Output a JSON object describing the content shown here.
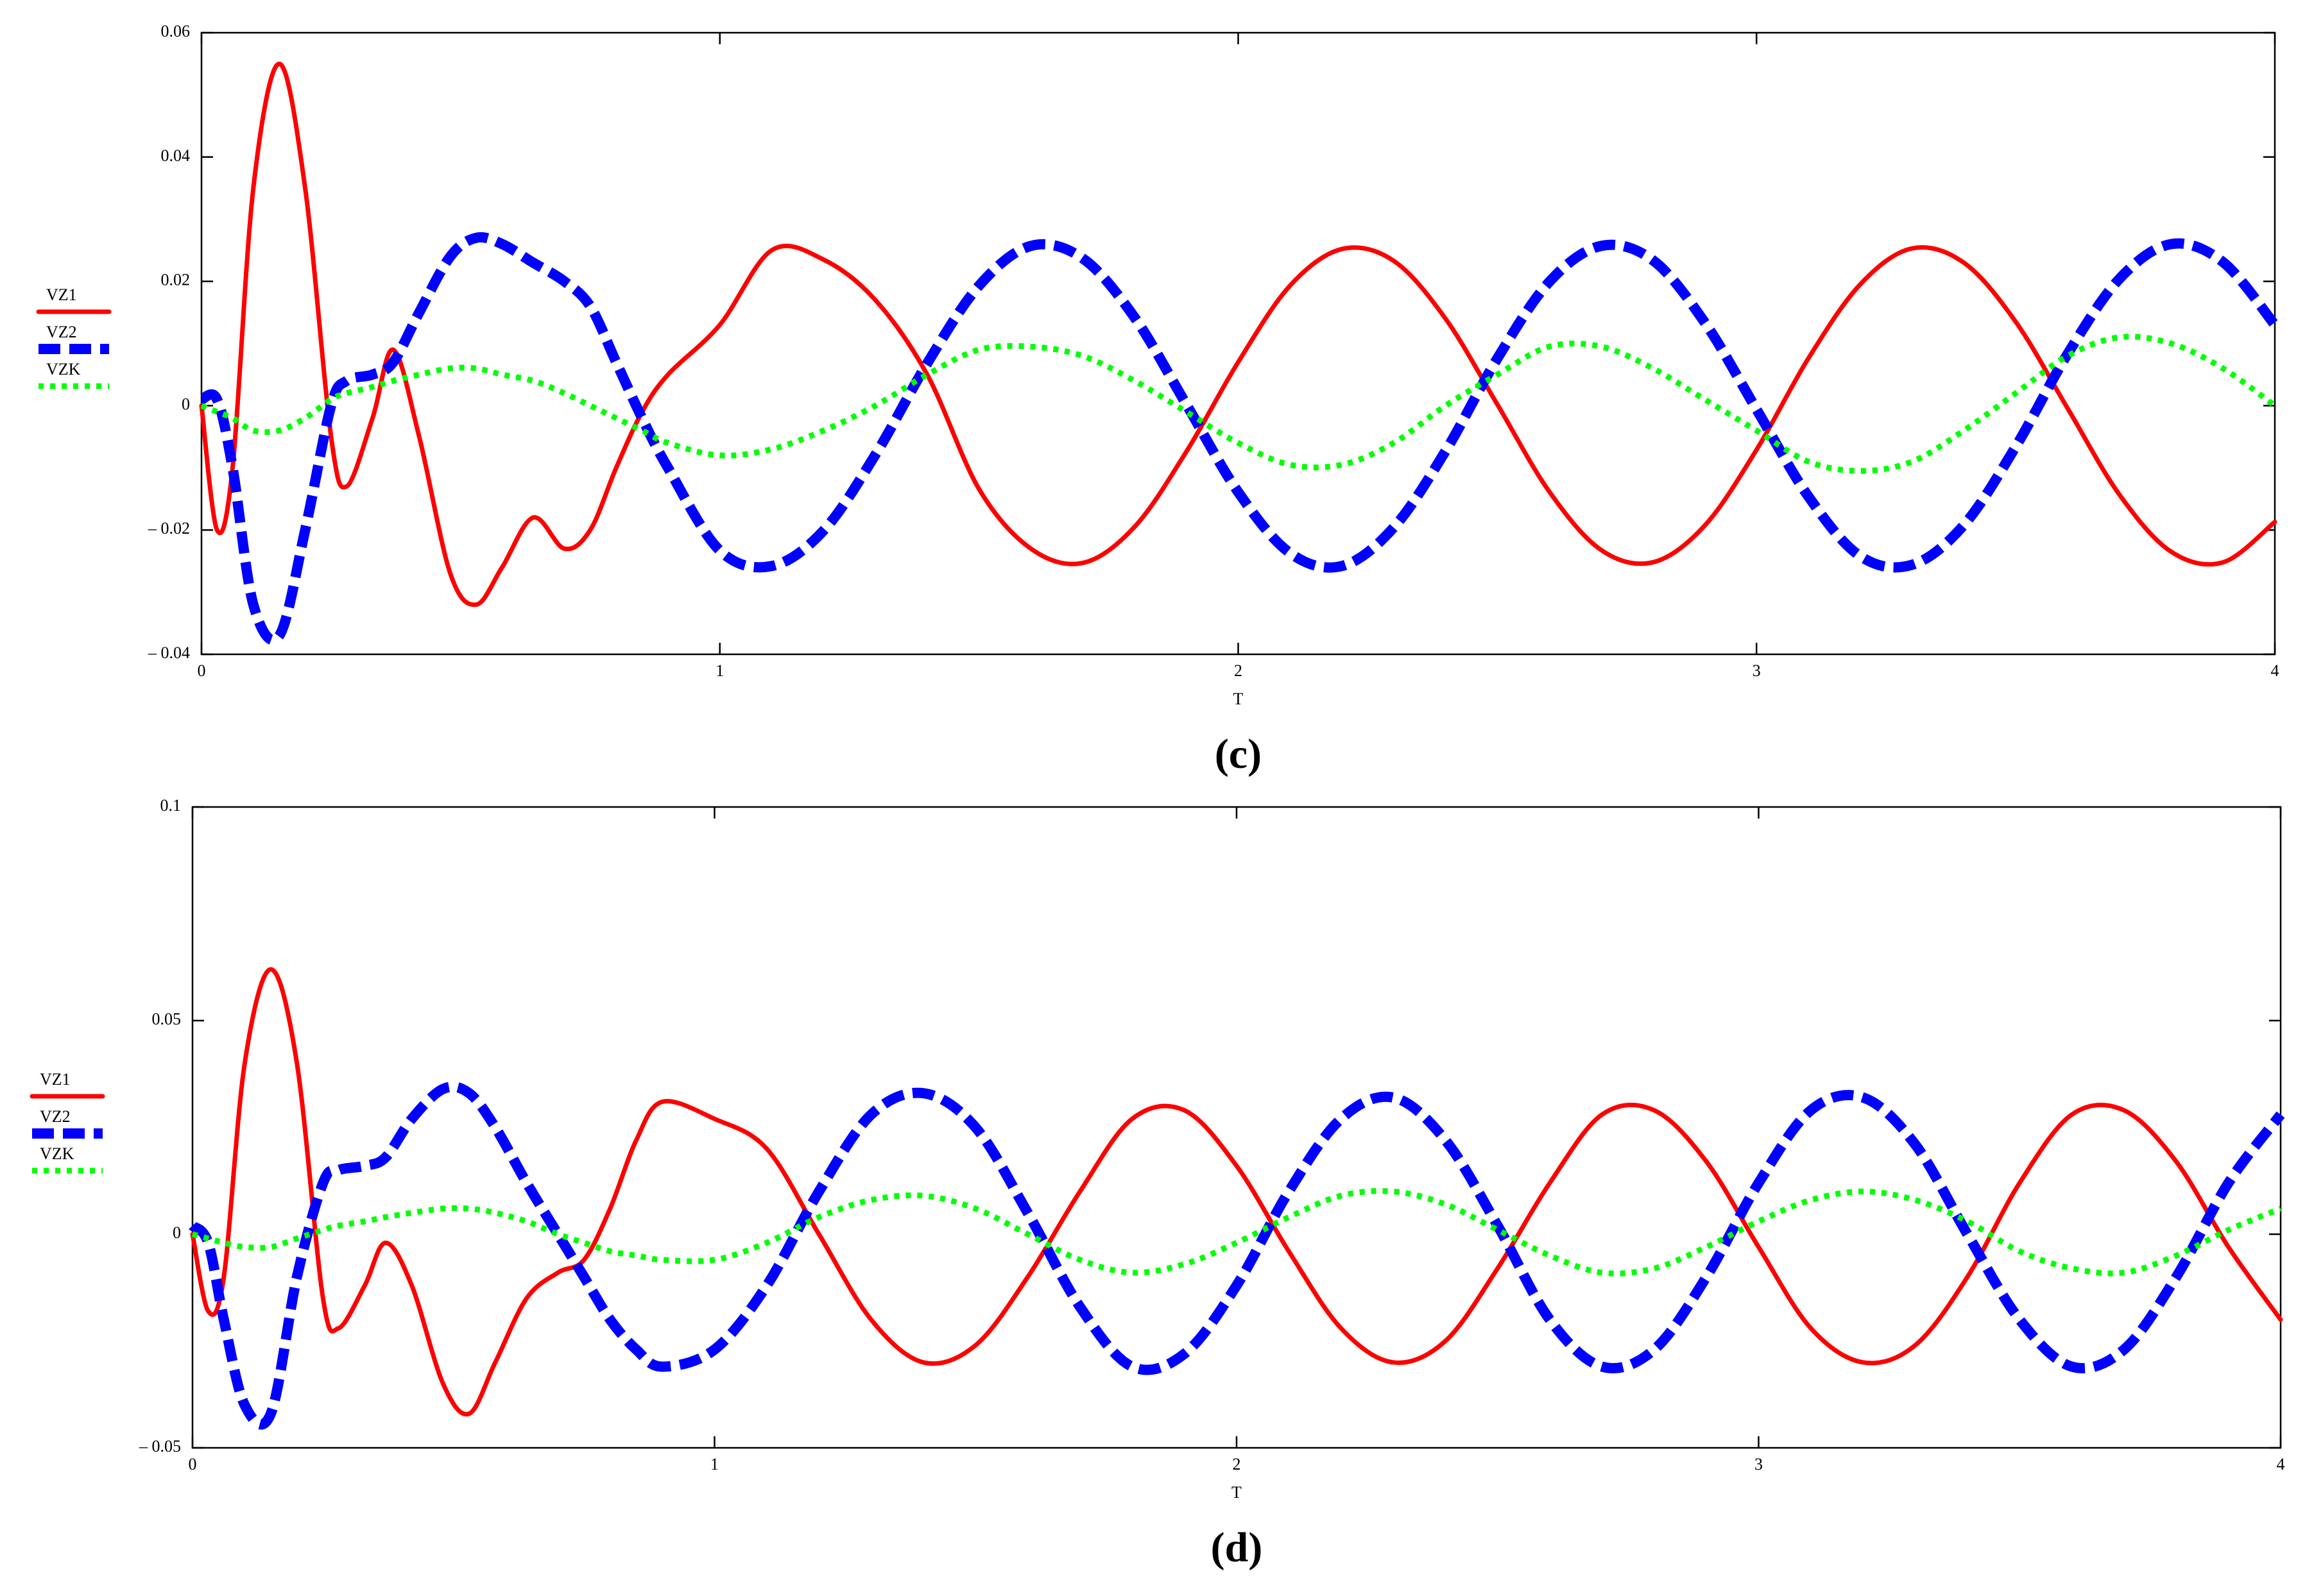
{
  "chart_data": [
    {
      "type": "line",
      "caption": "(c)",
      "xlabel": "T",
      "xlim": [
        0,
        4
      ],
      "xticks": [
        0,
        1,
        2,
        3,
        4
      ],
      "ylim": [
        -0.04,
        0.06
      ],
      "yticks": [
        {
          "value": -0.04,
          "label": "– 0.04"
        },
        {
          "value": -0.02,
          "label": "– 0.02"
        },
        0,
        0.02,
        0.04,
        0.06
      ],
      "x": [
        0,
        0.03,
        0.06,
        0.1,
        0.15,
        0.2,
        0.25,
        0.28,
        0.33,
        0.37,
        0.42,
        0.48,
        0.53,
        0.58,
        0.64,
        0.7,
        0.75,
        0.8,
        0.85,
        0.9,
        1.0,
        1.1,
        1.2,
        1.3,
        1.4,
        1.5,
        1.6,
        1.7,
        1.8,
        1.9,
        2.0,
        2.1,
        2.2,
        2.3,
        2.4,
        2.5,
        2.6,
        2.7,
        2.8,
        2.9,
        3.0,
        3.1,
        3.2,
        3.3,
        3.4,
        3.5,
        3.6,
        3.7,
        3.8,
        3.9,
        4.0
      ],
      "series": [
        {
          "name": "VZ1",
          "color": "#ff0000",
          "style": "solid",
          "values": [
            0,
            -0.02,
            -0.01,
            0.035,
            0.055,
            0.035,
            -0.005,
            -0.013,
            -0.002,
            0.009,
            -0.005,
            -0.027,
            -0.032,
            -0.026,
            -0.018,
            -0.023,
            -0.02,
            -0.01,
            -0.001,
            0.005,
            0.013,
            0.025,
            0.0235,
            0.017,
            0.005,
            -0.0134,
            -0.023,
            -0.0253,
            -0.0195,
            -0.0074,
            0.007,
            0.0193,
            0.0252,
            0.0233,
            0.014,
            0.0002,
            -0.0138,
            -0.0232,
            -0.0252,
            -0.0193,
            -0.0071,
            0.0076,
            0.0195,
            0.0253,
            0.023,
            0.0135,
            -0.0004,
            -0.0143,
            -0.0235,
            -0.0252,
            -0.0187
          ]
        },
        {
          "name": "VZ2",
          "color": "#0000ff",
          "style": "dashed",
          "values": [
            0.001,
            0.001,
            -0.01,
            -0.032,
            -0.037,
            -0.02,
            0,
            0.004,
            0.005,
            0.007,
            0.015,
            0.024,
            0.027,
            0.026,
            0.023,
            0.02,
            0.016,
            0.007,
            -0.002,
            -0.01,
            -0.0233,
            -0.0258,
            -0.0201,
            -0.0079,
            0.0068,
            0.0193,
            0.0257,
            0.0237,
            0.0142,
            0.0002,
            -0.0139,
            -0.0237,
            -0.0258,
            -0.0196,
            -0.0073,
            0.0076,
            0.0199,
            0.0257,
            0.0234,
            0.0134,
            -0.0006,
            -0.0146,
            -0.0242,
            -0.0256,
            -0.0192,
            -0.0066,
            0.0083,
            0.0204,
            0.026,
            0.0231,
            0.013
          ]
        },
        {
          "name": "VZK",
          "color": "#00ff00",
          "style": "dotted",
          "values": [
            0,
            -0.001,
            -0.002,
            -0.004,
            -0.004,
            -0.002,
            0.001,
            0.002,
            0.003,
            0.004,
            0.005,
            0.006,
            0.006,
            0.005,
            0.004,
            0.002,
            0,
            -0.002,
            -0.004,
            -0.006,
            -0.008,
            -0.007,
            -0.004,
            0,
            0.005,
            0.009,
            0.0095,
            0.008,
            0.004,
            -0.001,
            -0.006,
            -0.0095,
            -0.0095,
            -0.006,
            0,
            0.005,
            0.0095,
            0.0095,
            0.006,
            0.001,
            -0.004,
            -0.009,
            -0.0105,
            -0.009,
            -0.004,
            0.002,
            0.008,
            0.011,
            0.01,
            0.006,
            0
          ]
        }
      ]
    },
    {
      "type": "line",
      "caption": "(d)",
      "xlabel": "T",
      "xlim": [
        0,
        4
      ],
      "xticks": [
        0,
        1,
        2,
        3,
        4
      ],
      "ylim": [
        -0.05,
        0.1
      ],
      "yticks": [
        {
          "value": -0.05,
          "label": "– 0.05"
        },
        0,
        0.05,
        0.1
      ],
      "x": [
        0,
        0.03,
        0.06,
        0.1,
        0.15,
        0.2,
        0.25,
        0.28,
        0.33,
        0.37,
        0.42,
        0.48,
        0.53,
        0.58,
        0.64,
        0.7,
        0.75,
        0.8,
        0.85,
        0.9,
        1.0,
        1.1,
        1.2,
        1.3,
        1.4,
        1.5,
        1.6,
        1.7,
        1.8,
        1.9,
        2.0,
        2.1,
        2.2,
        2.3,
        2.4,
        2.5,
        2.6,
        2.7,
        2.8,
        2.9,
        3.0,
        3.1,
        3.2,
        3.3,
        3.4,
        3.5,
        3.6,
        3.7,
        3.8,
        3.9,
        4.0
      ],
      "series": [
        {
          "name": "VZ1",
          "color": "#ff0000",
          "style": "solid",
          "values": [
            0,
            -0.018,
            -0.01,
            0.04,
            0.062,
            0.04,
            -0.015,
            -0.022,
            -0.012,
            -0.002,
            -0.012,
            -0.035,
            -0.042,
            -0.03,
            -0.015,
            -0.009,
            -0.006,
            0.006,
            0.022,
            0.031,
            0.027,
            0.02,
            0,
            -0.02,
            -0.03,
            -0.026,
            -0.01,
            0.01,
            0.027,
            0.029,
            0.016,
            -0.004,
            -0.022,
            -0.03,
            -0.025,
            -0.008,
            0.012,
            0.028,
            0.029,
            0.017,
            -0.003,
            -0.022,
            -0.03,
            -0.026,
            -0.01,
            0.012,
            0.028,
            0.029,
            0.017,
            -0.003,
            -0.02
          ]
        },
        {
          "name": "VZ2",
          "color": "#0000ff",
          "style": "dashed",
          "values": [
            0.002,
            -0.002,
            -0.02,
            -0.04,
            -0.042,
            -0.01,
            0.012,
            0.015,
            0.016,
            0.018,
            0.027,
            0.034,
            0.033,
            0.025,
            0.012,
            0,
            -0.01,
            -0.02,
            -0.027,
            -0.031,
            -0.027,
            -0.012,
            0.01,
            0.028,
            0.033,
            0.025,
            0.005,
            -0.017,
            -0.031,
            -0.028,
            -0.012,
            0.01,
            0.027,
            0.032,
            0.022,
            0.002,
            -0.02,
            -0.031,
            -0.027,
            -0.01,
            0.012,
            0.029,
            0.032,
            0.021,
            0,
            -0.02,
            -0.031,
            -0.027,
            -0.01,
            0.012,
            0.028
          ]
        },
        {
          "name": "VZK",
          "color": "#00ff00",
          "style": "dotted",
          "values": [
            0,
            -0.001,
            -0.002,
            -0.003,
            -0.003,
            -0.001,
            0.001,
            0.002,
            0.003,
            0.004,
            0.005,
            0.006,
            0.006,
            0.005,
            0.003,
            0,
            -0.002,
            -0.004,
            -0.005,
            -0.006,
            -0.006,
            -0.002,
            0.004,
            0.008,
            0.009,
            0.006,
            0,
            -0.006,
            -0.009,
            -0.007,
            -0.002,
            0.004,
            0.009,
            0.01,
            0.007,
            0.001,
            -0.005,
            -0.009,
            -0.008,
            -0.003,
            0.003,
            0.008,
            0.01,
            0.008,
            0.003,
            -0.004,
            -0.008,
            -0.009,
            -0.005,
            0.001,
            0.006
          ]
        }
      ]
    }
  ]
}
